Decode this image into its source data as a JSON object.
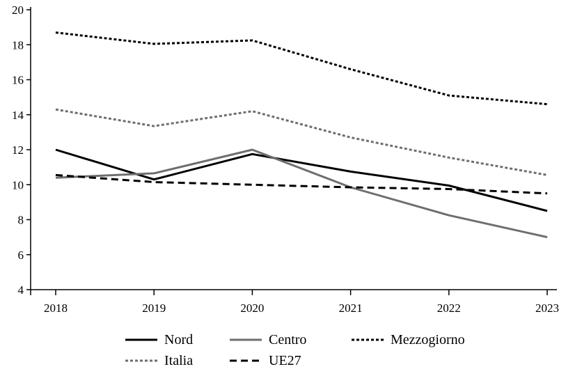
{
  "chart_data": {
    "type": "line",
    "title": "",
    "xlabel": "",
    "ylabel": "",
    "categories": [
      "2018",
      "2019",
      "2020",
      "2021",
      "2022",
      "2023"
    ],
    "ylim": [
      4,
      20
    ],
    "yticks": [
      "4",
      "6",
      "8",
      "10",
      "12",
      "14",
      "16",
      "18",
      "20"
    ],
    "grid": false,
    "legend_position": "bottom",
    "series": [
      {
        "name": "Nord",
        "values": [
          12.0,
          10.3,
          11.75,
          10.75,
          9.95,
          8.5
        ],
        "color": "#000000",
        "style": "solid"
      },
      {
        "name": "Centro",
        "values": [
          10.4,
          10.65,
          12.0,
          9.85,
          8.25,
          7.0
        ],
        "color": "#6e6e6e",
        "style": "solid"
      },
      {
        "name": "Mezzogiorno",
        "values": [
          18.7,
          18.05,
          18.25,
          16.6,
          15.1,
          14.6
        ],
        "color": "#000000",
        "style": "dotted"
      },
      {
        "name": "Italia",
        "values": [
          14.3,
          13.35,
          14.2,
          12.7,
          11.55,
          10.55
        ],
        "color": "#6e6e6e",
        "style": "dotted"
      },
      {
        "name": "UE27",
        "values": [
          10.55,
          10.15,
          10.0,
          9.85,
          9.75,
          9.5
        ],
        "color": "#000000",
        "style": "dashed"
      }
    ]
  }
}
